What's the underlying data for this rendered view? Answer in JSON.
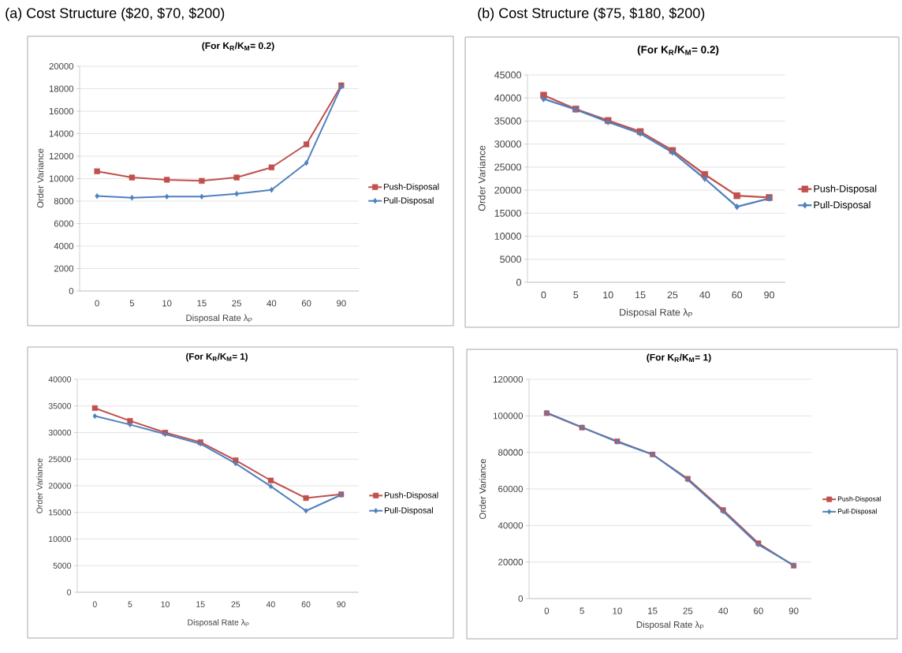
{
  "chart_data": [
    {
      "type": "line",
      "title": "(For K$_{R}$/K$_{M}$= 0.2)",
      "xlabel": "Disposal Rate λ$_{P}$",
      "ylabel": "Order Variance",
      "annotations": [
        "(a) Cost Structure ($20, $70, $200)"
      ],
      "categories": [
        "0",
        "5",
        "10",
        "15",
        "25",
        "40",
        "60",
        "90"
      ],
      "series": [
        {
          "name": "Push-Disposal",
          "color": "#c0504d",
          "marker": "square",
          "values": [
            10650,
            10100,
            9900,
            9800,
            10100,
            11000,
            13050,
            18300
          ]
        },
        {
          "name": "Pull-Disposal",
          "color": "#4f81bd",
          "marker": "diamond",
          "values": [
            8450,
            8300,
            8400,
            8400,
            8650,
            9000,
            11400,
            18200
          ]
        }
      ],
      "ylim": [
        0,
        20000
      ],
      "yticks": [
        0,
        2000,
        4000,
        6000,
        8000,
        10000,
        12000,
        14000,
        16000,
        18000,
        20000
      ],
      "grid": "y",
      "legend": "right"
    },
    {
      "type": "line",
      "title": "(For K$_{R}$/K$_{M}$= 0.2)",
      "xlabel": "Disposal Rate λ$_{P}$",
      "ylabel": "Order Variance",
      "annotations": [
        "(b) Cost Structure ($75, $180, $200)"
      ],
      "categories": [
        "0",
        "5",
        "10",
        "15",
        "25",
        "40",
        "60",
        "90"
      ],
      "series": [
        {
          "name": "Push-Disposal",
          "color": "#c0504d",
          "marker": "square",
          "values": [
            40600,
            37600,
            35100,
            32700,
            28600,
            23400,
            18800,
            18400
          ]
        },
        {
          "name": "Pull-Disposal",
          "color": "#4f81bd",
          "marker": "diamond",
          "values": [
            39800,
            37500,
            34800,
            32300,
            28200,
            22500,
            16400,
            18200
          ]
        }
      ],
      "ylim": [
        0,
        45000
      ],
      "yticks": [
        0,
        5000,
        10000,
        15000,
        20000,
        25000,
        30000,
        35000,
        40000,
        45000
      ],
      "grid": "y",
      "legend": "right"
    },
    {
      "type": "line",
      "title": "(For K$_{R}$/K$_{M}$= 1)",
      "xlabel": "Disposal Rate λ$_{P}$",
      "ylabel": "Order Variance",
      "categories": [
        "0",
        "5",
        "10",
        "15",
        "25",
        "40",
        "60",
        "90"
      ],
      "series": [
        {
          "name": "Push-Disposal",
          "color": "#c0504d",
          "marker": "square",
          "values": [
            34600,
            32200,
            30000,
            28200,
            24800,
            21000,
            17700,
            18400
          ]
        },
        {
          "name": "Pull-Disposal",
          "color": "#4f81bd",
          "marker": "diamond",
          "values": [
            33100,
            31500,
            29700,
            27900,
            24200,
            19900,
            15300,
            18300
          ]
        }
      ],
      "ylim": [
        0,
        40000
      ],
      "yticks": [
        0,
        5000,
        10000,
        15000,
        20000,
        25000,
        30000,
        35000,
        40000
      ],
      "grid": "y",
      "legend": "right"
    },
    {
      "type": "line",
      "title": "(For K$_{R}$/K$_{M}$= 1)",
      "xlabel": "Disposal Rate λ$_{P}$",
      "ylabel": "Order Variance",
      "categories": [
        "0",
        "5",
        "10",
        "15",
        "25",
        "40",
        "60",
        "90"
      ],
      "series": [
        {
          "name": "Push-Disposal",
          "color": "#c0504d",
          "marker": "square",
          "values": [
            101500,
            93600,
            86100,
            78900,
            65600,
            48500,
            30300,
            18000
          ]
        },
        {
          "name": "Pull-Disposal",
          "color": "#4f81bd",
          "marker": "diamond",
          "values": [
            101800,
            93800,
            85800,
            78900,
            65000,
            47700,
            29500,
            18300
          ]
        }
      ],
      "ylim": [
        0,
        120000
      ],
      "yticks": [
        0,
        20000,
        40000,
        60000,
        80000,
        100000,
        120000
      ],
      "grid": "y",
      "legend": "right"
    }
  ]
}
